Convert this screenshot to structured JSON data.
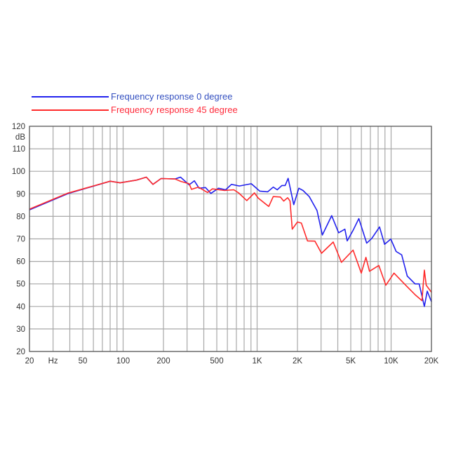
{
  "chart_data": {
    "type": "line",
    "title": "",
    "xlabel": "Hz",
    "ylabel": "dB",
    "x_scale": "log",
    "xlim": [
      20,
      20000
    ],
    "ylim": [
      20,
      120
    ],
    "grid": true,
    "legend_placement": "top-left",
    "x_tick_labels": [
      {
        "value": 20,
        "label": "20"
      },
      {
        "value": 30,
        "label": "Hz"
      },
      {
        "value": 50,
        "label": "50"
      },
      {
        "value": 100,
        "label": "100"
      },
      {
        "value": 200,
        "label": "200"
      },
      {
        "value": 500,
        "label": "500"
      },
      {
        "value": 1000,
        "label": "1K"
      },
      {
        "value": 2000,
        "label": "2K"
      },
      {
        "value": 5000,
        "label": "5K"
      },
      {
        "value": 10000,
        "label": "10K"
      },
      {
        "value": 20000,
        "label": "20K"
      }
    ],
    "y_ticks": [
      20,
      30,
      40,
      50,
      60,
      70,
      80,
      90,
      100,
      110,
      120
    ],
    "series": [
      {
        "name": "Frequency response 0 degree",
        "color": "#2222ee",
        "points": [
          [
            20,
            82.9
          ],
          [
            38.7,
            90.1
          ],
          [
            80,
            95.6
          ],
          [
            95,
            94.9
          ],
          [
            126,
            96.1
          ],
          [
            149,
            97.4
          ],
          [
            167,
            94.2
          ],
          [
            192,
            96.8
          ],
          [
            244,
            96.6
          ],
          [
            268,
            97.4
          ],
          [
            311,
            94
          ],
          [
            340,
            95.8
          ],
          [
            369,
            92.5
          ],
          [
            412,
            92.8
          ],
          [
            452,
            90.2
          ],
          [
            515,
            92.5
          ],
          [
            583,
            91.8
          ],
          [
            643,
            94.2
          ],
          [
            737,
            93.5
          ],
          [
            905,
            94.5
          ],
          [
            1045,
            91.2
          ],
          [
            1200,
            90.9
          ],
          [
            1320,
            93
          ],
          [
            1414,
            91.8
          ],
          [
            1530,
            93.7
          ],
          [
            1620,
            93.7
          ],
          [
            1704,
            96.9
          ],
          [
            1876,
            85.2
          ],
          [
            2049,
            92.5
          ],
          [
            2200,
            91.5
          ],
          [
            2450,
            88.8
          ],
          [
            2800,
            82.6
          ],
          [
            3070,
            71.7
          ],
          [
            3600,
            80.3
          ],
          [
            4060,
            72.7
          ],
          [
            4520,
            74.3
          ],
          [
            4700,
            69.1
          ],
          [
            5200,
            73.8
          ],
          [
            5740,
            79
          ],
          [
            6570,
            68.1
          ],
          [
            7170,
            70.2
          ],
          [
            8200,
            75.3
          ],
          [
            8940,
            67.6
          ],
          [
            9950,
            69.9
          ],
          [
            10900,
            64.4
          ],
          [
            12000,
            62.9
          ],
          [
            13200,
            53.5
          ],
          [
            15100,
            50
          ],
          [
            16200,
            50
          ],
          [
            17700,
            40
          ],
          [
            18600,
            46.8
          ],
          [
            20000,
            42.1
          ]
        ]
      },
      {
        "name": "Frequency response 45 degree",
        "color": "#ff2a2a",
        "points": [
          [
            20,
            83.2
          ],
          [
            38.7,
            90.3
          ],
          [
            80,
            95.6
          ],
          [
            95,
            94.9
          ],
          [
            126,
            96.1
          ],
          [
            149,
            97.4
          ],
          [
            167,
            94.2
          ],
          [
            192,
            96.8
          ],
          [
            244,
            96.6
          ],
          [
            270,
            95.5
          ],
          [
            311,
            94.5
          ],
          [
            324,
            92
          ],
          [
            364,
            93
          ],
          [
            427,
            90.6
          ],
          [
            464,
            92.2
          ],
          [
            571,
            91.5
          ],
          [
            670,
            91.8
          ],
          [
            728,
            90.4
          ],
          [
            838,
            87
          ],
          [
            955,
            90.4
          ],
          [
            1020,
            88.1
          ],
          [
            1222,
            84.4
          ],
          [
            1320,
            88.8
          ],
          [
            1490,
            88.6
          ],
          [
            1580,
            86.8
          ],
          [
            1690,
            88.3
          ],
          [
            1760,
            86.8
          ],
          [
            1830,
            74.3
          ],
          [
            2000,
            77.5
          ],
          [
            2140,
            77
          ],
          [
            2377,
            69.1
          ],
          [
            2700,
            69
          ],
          [
            3025,
            63.6
          ],
          [
            3700,
            68.6
          ],
          [
            4260,
            59.6
          ],
          [
            5200,
            65
          ],
          [
            5990,
            54.8
          ],
          [
            6490,
            61.8
          ],
          [
            6900,
            55.6
          ],
          [
            8100,
            58.2
          ],
          [
            9140,
            49.4
          ],
          [
            10500,
            54.8
          ],
          [
            13100,
            48.9
          ],
          [
            15100,
            45.2
          ],
          [
            17000,
            42.6
          ],
          [
            17700,
            56.1
          ],
          [
            18300,
            49.4
          ],
          [
            20000,
            46.3
          ]
        ]
      }
    ]
  }
}
